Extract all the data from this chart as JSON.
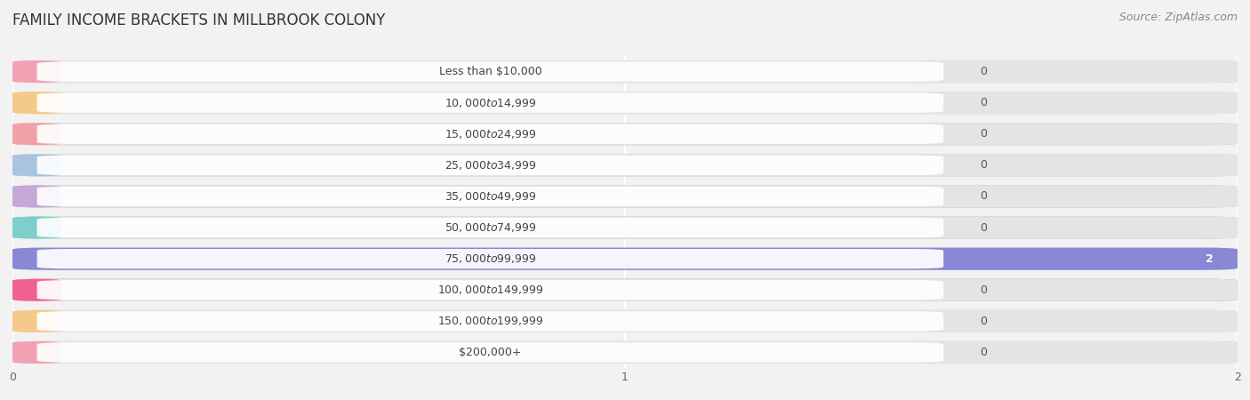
{
  "title": "FAMILY INCOME BRACKETS IN MILLBROOK COLONY",
  "source": "Source: ZipAtlas.com",
  "categories": [
    "Less than $10,000",
    "$10,000 to $14,999",
    "$15,000 to $24,999",
    "$25,000 to $34,999",
    "$35,000 to $49,999",
    "$50,000 to $74,999",
    "$75,000 to $99,999",
    "$100,000 to $149,999",
    "$150,000 to $199,999",
    "$200,000+"
  ],
  "values": [
    0,
    0,
    0,
    0,
    0,
    0,
    2,
    0,
    0,
    0
  ],
  "bar_colors": [
    "#f2a0b4",
    "#f5c98a",
    "#f2a0a8",
    "#a8c4e0",
    "#c4a8d8",
    "#7ecece",
    "#8888d4",
    "#f06090",
    "#f5c98a",
    "#f2a0b4"
  ],
  "xlim": [
    0,
    2
  ],
  "xticks": [
    0,
    1,
    2
  ],
  "background_color": "#f2f2f2",
  "row_bg_color": "#e4e4e4",
  "title_fontsize": 12,
  "source_fontsize": 9,
  "label_fontsize": 9,
  "value_fontsize": 9
}
